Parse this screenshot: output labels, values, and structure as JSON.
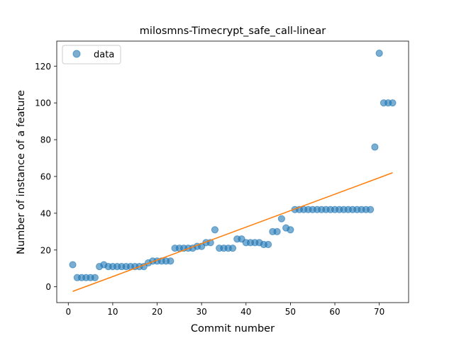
{
  "chart_data": {
    "type": "scatter",
    "title": "milosmns-Timecrypt_safe_call-linear",
    "xlabel": "Commit number",
    "ylabel": "Number of instance of a feature",
    "xlim": [
      -2.6,
      76.6
    ],
    "ylim": [
      -8.6,
      133.6
    ],
    "x_ticks": [
      0,
      10,
      20,
      30,
      40,
      50,
      60,
      70
    ],
    "y_ticks": [
      0,
      20,
      40,
      60,
      80,
      100,
      120
    ],
    "x_tick_labels": [
      "0",
      "10",
      "20",
      "30",
      "40",
      "50",
      "60",
      "70"
    ],
    "y_tick_labels": [
      "0",
      "20",
      "40",
      "60",
      "80",
      "100",
      "120"
    ],
    "grid": false,
    "legend": {
      "position": "top-left",
      "entries": [
        "data"
      ]
    },
    "series": [
      {
        "name": "data",
        "kind": "scatter",
        "color": "#1f77b4",
        "x": [
          1,
          2,
          3,
          4,
          5,
          6,
          7,
          8,
          9,
          10,
          11,
          12,
          13,
          14,
          15,
          16,
          17,
          18,
          19,
          20,
          21,
          22,
          23,
          24,
          25,
          26,
          27,
          28,
          29,
          30,
          31,
          32,
          33,
          34,
          35,
          36,
          37,
          38,
          39,
          40,
          41,
          42,
          43,
          44,
          45,
          46,
          47,
          48,
          49,
          50,
          51,
          52,
          53,
          54,
          55,
          56,
          57,
          58,
          59,
          60,
          61,
          62,
          63,
          64,
          65,
          66,
          67,
          68,
          69,
          70,
          71,
          72,
          73
        ],
        "y": [
          12,
          5,
          5,
          5,
          5,
          5,
          11,
          12,
          11,
          11,
          11,
          11,
          11,
          11,
          11,
          11,
          11,
          13,
          14,
          14,
          14,
          14,
          14,
          21,
          21,
          21,
          21,
          21,
          22,
          22,
          24,
          24,
          31,
          21,
          21,
          21,
          21,
          26,
          26,
          24,
          24,
          24,
          24,
          23,
          23,
          30,
          30,
          37,
          32,
          31,
          42,
          42,
          42,
          42,
          42,
          42,
          42,
          42,
          42,
          42,
          42,
          42,
          42,
          42,
          42,
          42,
          42,
          42,
          76,
          127,
          100,
          100,
          100
        ]
      },
      {
        "kind": "line",
        "color": "#ff7f0e",
        "x": [
          1,
          73
        ],
        "y": [
          -2.5,
          62
        ]
      }
    ]
  }
}
